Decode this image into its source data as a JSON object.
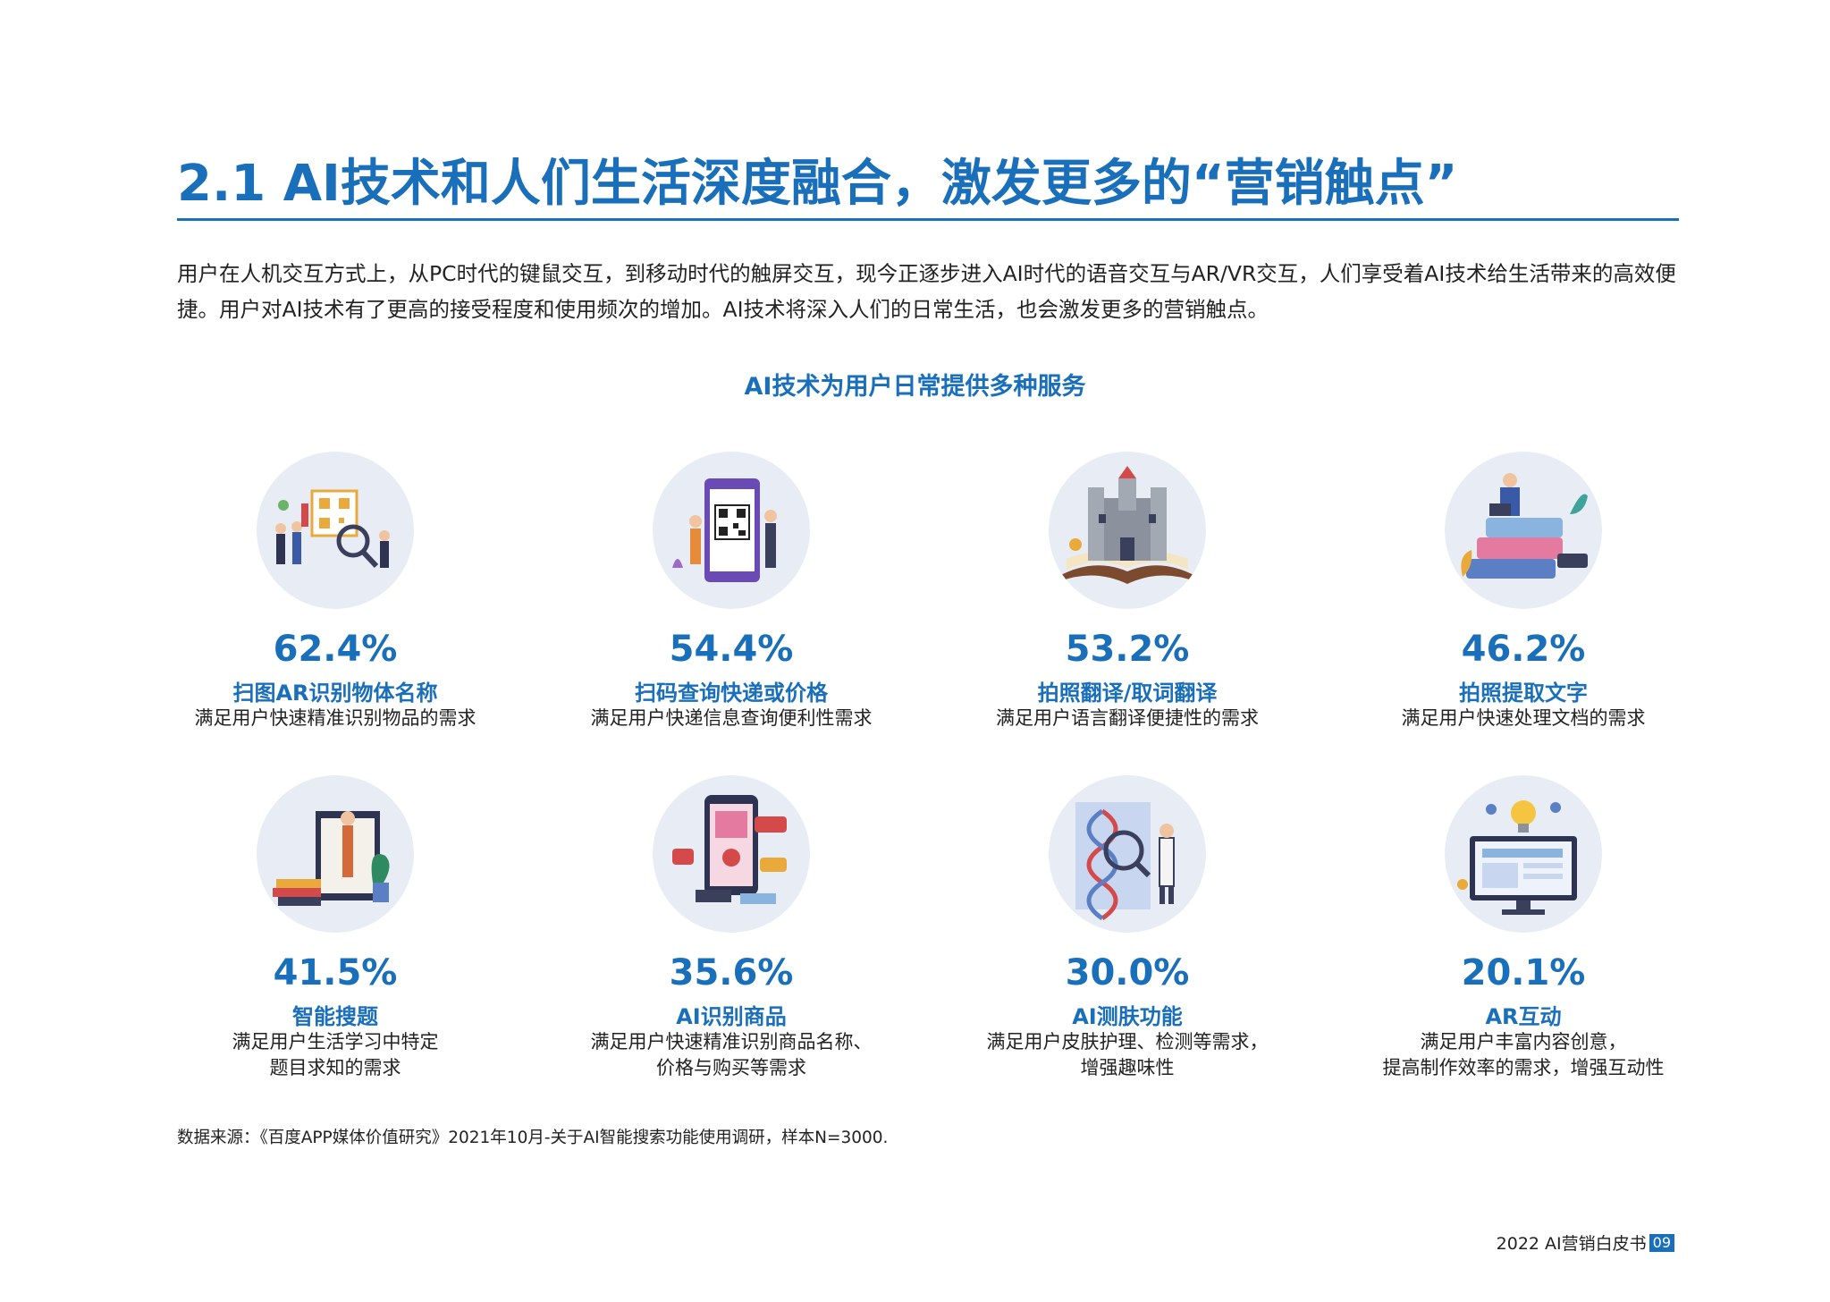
{
  "page": {
    "title": "2.1 AI技术和人们生活深度融合，激发更多的“营销触点”",
    "intro": "用户在人机交互方式上，从PC时代的键鼠交互，到移动时代的触屏交互，现今正逐步进入AI时代的语音交互与AR/VR交互，人们享受着AI技术给生活带来的高效便捷。用户对AI技术有了更高的接受程度和使用频次的增加。AI技术将深入人们的日常生活，也会激发更多的营销触点。",
    "section_heading": "AI技术为用户日常提供多种服务",
    "source": "数据来源：《百度APP媒体价值研究》2021年10月-关于AI智能搜索功能使用调研，样本N=3000.",
    "footer_text": "2022 AI营销白皮书",
    "page_number": "09"
  },
  "cards": [
    {
      "percent": "62.4%",
      "label": "扫图AR识别物体名称",
      "desc": "满足用户快速精准识别物品的需求",
      "icon": "qr-scan-team-icon"
    },
    {
      "percent": "54.4%",
      "label": "扫码查询快递或价格",
      "desc": "满足用户快递信息查询便利性需求",
      "icon": "phone-qr-code-icon"
    },
    {
      "percent": "53.2%",
      "label": "拍照翻译/取词翻译",
      "desc": "满足用户语言翻译便捷性的需求",
      "icon": "castle-book-icon"
    },
    {
      "percent": "46.2%",
      "label": "拍照提取文字",
      "desc": "满足用户快速处理文档的需求",
      "icon": "stacked-books-icon"
    },
    {
      "percent": "41.5%",
      "label": "智能搜题",
      "desc": "满足用户生活学习中特定\n题目求知的需求",
      "icon": "study-board-icon"
    },
    {
      "percent": "35.6%",
      "label": "AI识别商品",
      "desc": "满足用户快速精准识别商品名称、\n价格与购买等需求",
      "icon": "shopping-phone-icon"
    },
    {
      "percent": "30.0%",
      "label": "AI测肤功能",
      "desc": "满足用户皮肤护理、检测等需求，\n增强趣味性",
      "icon": "dna-research-icon"
    },
    {
      "percent": "20.1%",
      "label": "AR互动",
      "desc": "满足用户丰富内容创意，\n提高制作效率的需求，增强互动性",
      "icon": "monitor-idea-icon"
    }
  ]
}
